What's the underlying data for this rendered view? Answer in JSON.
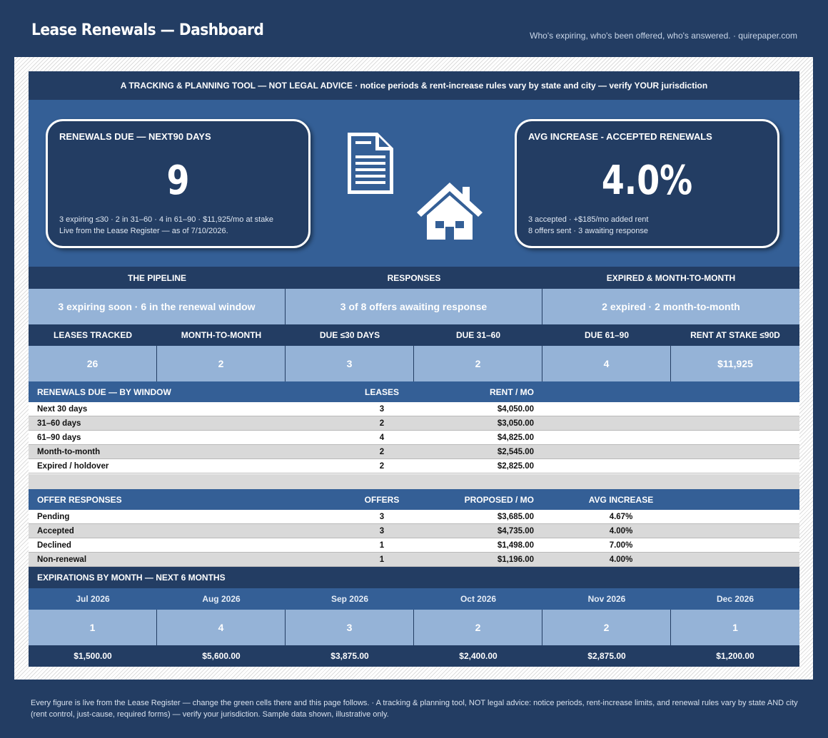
{
  "header": {
    "title": "Lease Renewals — Dashboard",
    "tagline": "Who's expiring, who's been offered, who's answered.  ·  quirepaper.com"
  },
  "banner": "A TRACKING & PLANNING TOOL — NOT LEGAL ADVICE  ·  notice periods & rent-increase rules vary by state and city — verify YOUR jurisdiction",
  "kpi_left": {
    "label": "RENEWALS DUE — NEXT90 DAYS",
    "value": "9",
    "note1": "3 expiring ≤30  ·  2 in 31–60  ·  4 in 61–90  ·  $11,925/mo at stake",
    "note2": "Live from the Lease Register — as of 7/10/2026."
  },
  "kpi_right": {
    "label": "AVG INCREASE - ACCEPTED RENEWALS",
    "value": "4.0%",
    "note1": "3 accepted  ·  +$185/mo added rent",
    "note2": "8 offers sent  ·  3 awaiting response"
  },
  "icons": {
    "document": "document-icon",
    "house": "house-icon"
  },
  "pipeline": {
    "headers": [
      "THE PIPELINE",
      "RESPONSES",
      "EXPIRED & MONTH-TO-MONTH"
    ],
    "values": [
      "3 expiring soon  ·  6 in the renewal window",
      "3 of 8 offers awaiting response",
      "2 expired  ·  2 month-to-month"
    ]
  },
  "kpis": {
    "headers": [
      "LEASES TRACKED",
      "MONTH-TO-MONTH",
      "DUE ≤30 DAYS",
      "DUE 31–60",
      "DUE 61–90",
      "RENT AT STAKE ≤90D"
    ],
    "values": [
      "26",
      "2",
      "3",
      "2",
      "4",
      "$11,925"
    ]
  },
  "renewals_table": {
    "headers": {
      "label": "RENEWALS DUE — BY WINDOW",
      "count": "LEASES",
      "amount": "RENT / MO"
    },
    "rows": [
      {
        "label": "Next 30 days",
        "count": "3",
        "amount": "$4,050.00"
      },
      {
        "label": "31–60 days",
        "count": "2",
        "amount": "$3,050.00"
      },
      {
        "label": "61–90 days",
        "count": "4",
        "amount": "$4,825.00"
      },
      {
        "label": "Month-to-month",
        "count": "2",
        "amount": "$2,545.00"
      },
      {
        "label": "Expired / holdover",
        "count": "2",
        "amount": "$2,825.00"
      }
    ]
  },
  "offers_table": {
    "headers": {
      "label": "OFFER RESPONSES",
      "count": "OFFERS",
      "amount": "PROPOSED / MO",
      "increase": "AVG INCREASE"
    },
    "rows": [
      {
        "label": "Pending",
        "count": "3",
        "amount": "$3,685.00",
        "increase": "4.67%"
      },
      {
        "label": "Accepted",
        "count": "3",
        "amount": "$4,735.00",
        "increase": "4.00%"
      },
      {
        "label": "Declined",
        "count": "1",
        "amount": "$1,498.00",
        "increase": "7.00%"
      },
      {
        "label": "Non-renewal",
        "count": "1",
        "amount": "$1,196.00",
        "increase": "4.00%"
      }
    ]
  },
  "expirations": {
    "title": "EXPIRATIONS BY MONTH — NEXT 6 MONTHS",
    "months": [
      "Jul 2026",
      "Aug 2026",
      "Sep 2026",
      "Oct 2026",
      "Nov 2026",
      "Dec 2026"
    ],
    "counts": [
      "1",
      "4",
      "3",
      "2",
      "2",
      "1"
    ],
    "amounts": [
      "$1,500.00",
      "$5,600.00",
      "$3,875.00",
      "$2,400.00",
      "$2,875.00",
      "$1,200.00"
    ]
  },
  "footer": "Every figure is live from the Lease Register — change the green cells there and this page follows.  ·  A tracking & planning tool, NOT legal advice: notice periods, rent-increase limits, and renewal rules vary by state AND city (rent control, just-cause, required forms) — verify your jurisdiction. Sample data shown, illustrative only."
}
